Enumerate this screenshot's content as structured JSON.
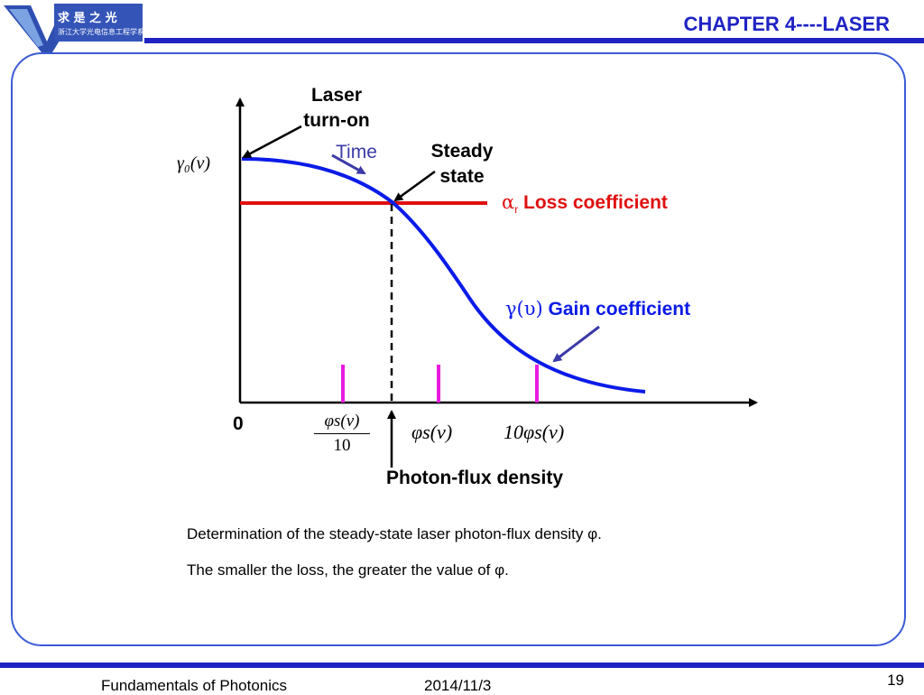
{
  "header": {
    "title": "CHAPTER 4----LASER",
    "logo_text": "浙江大学光电信息工程学系"
  },
  "footer": {
    "course": "Fundamentals of Photonics",
    "date": "2014/11/3",
    "page": "19"
  },
  "diagram": {
    "annotation_laser": [
      "Laser",
      "turn-on"
    ],
    "annotation_time": "Time",
    "annotation_steady": [
      "Steady",
      "state"
    ],
    "loss_symbol": "α",
    "loss_subscript": "r",
    "loss_label": "Loss coefficient",
    "gain_symbol": "γ(υ)",
    "gain_label": "Gain coefficient",
    "gamma0_label": "γ₀(ν)",
    "origin_label": "0",
    "tick_frac_num": "φs(ν)",
    "tick_frac_den": "10",
    "tick_mid": "φs(ν)",
    "tick_ten": "10φs(ν)",
    "x_axis_label": "Photon-flux density",
    "colors": {
      "gain": "#0a1be8",
      "loss": "#e01010",
      "ticks": "#e81ce0",
      "arrow": "#3a3aa8"
    }
  },
  "captions": [
    "Determination of the steady-state laser photon-flux density φ.",
    "The smaller the loss, the greater the value of φ."
  ]
}
